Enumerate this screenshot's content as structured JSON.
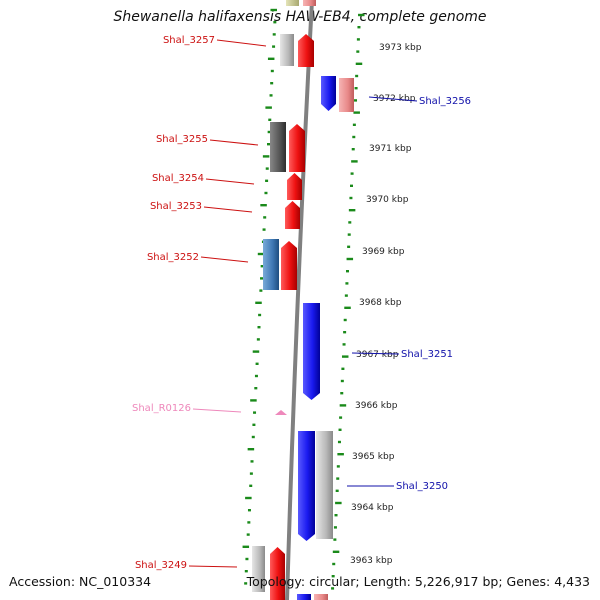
{
  "title": "Shewanella halifaxensis HAW-EB4, complete genome",
  "footer": {
    "accession": "Accession: NC_010334",
    "topology": "Topology: circular; Length: 5,226,917 bp; Genes: 4,433"
  },
  "colors": {
    "cds_forward": "#ee1111",
    "cds_reverse": "#1a1af0",
    "pink_feature": "#ee88bb",
    "gray_block": "#b8b8b8",
    "dark_gray_block": "#555555",
    "salmon_block": "#e88888",
    "steel_block": "#3e78b4",
    "olive_block": "#c8c890",
    "tick_color": "#1a8a1a",
    "label_forward": "#cc1111",
    "label_reverse": "#1111aa",
    "label_rna": "#ee88bb"
  },
  "kbp_labels": [
    "3973 kbp",
    "3972 kbp",
    "3971 kbp",
    "3970 kbp",
    "3969 kbp",
    "3968 kbp",
    "3967 kbp",
    "3966 kbp",
    "3965 kbp",
    "3964 kbp",
    "3963 kbp"
  ],
  "genes": [
    {
      "name": "Shal_3257",
      "strand": "left"
    },
    {
      "name": "Shal_3256",
      "strand": "right"
    },
    {
      "name": "Shal_3255",
      "strand": "left"
    },
    {
      "name": "Shal_3254",
      "strand": "left"
    },
    {
      "name": "Shal_3253",
      "strand": "left"
    },
    {
      "name": "Shal_3252",
      "strand": "left"
    },
    {
      "name": "Shal_3251",
      "strand": "right"
    },
    {
      "name": "Shal_R0126",
      "strand": "left"
    },
    {
      "name": "Shal_3250",
      "strand": "right"
    },
    {
      "name": "Shal_3249",
      "strand": "left"
    }
  ]
}
